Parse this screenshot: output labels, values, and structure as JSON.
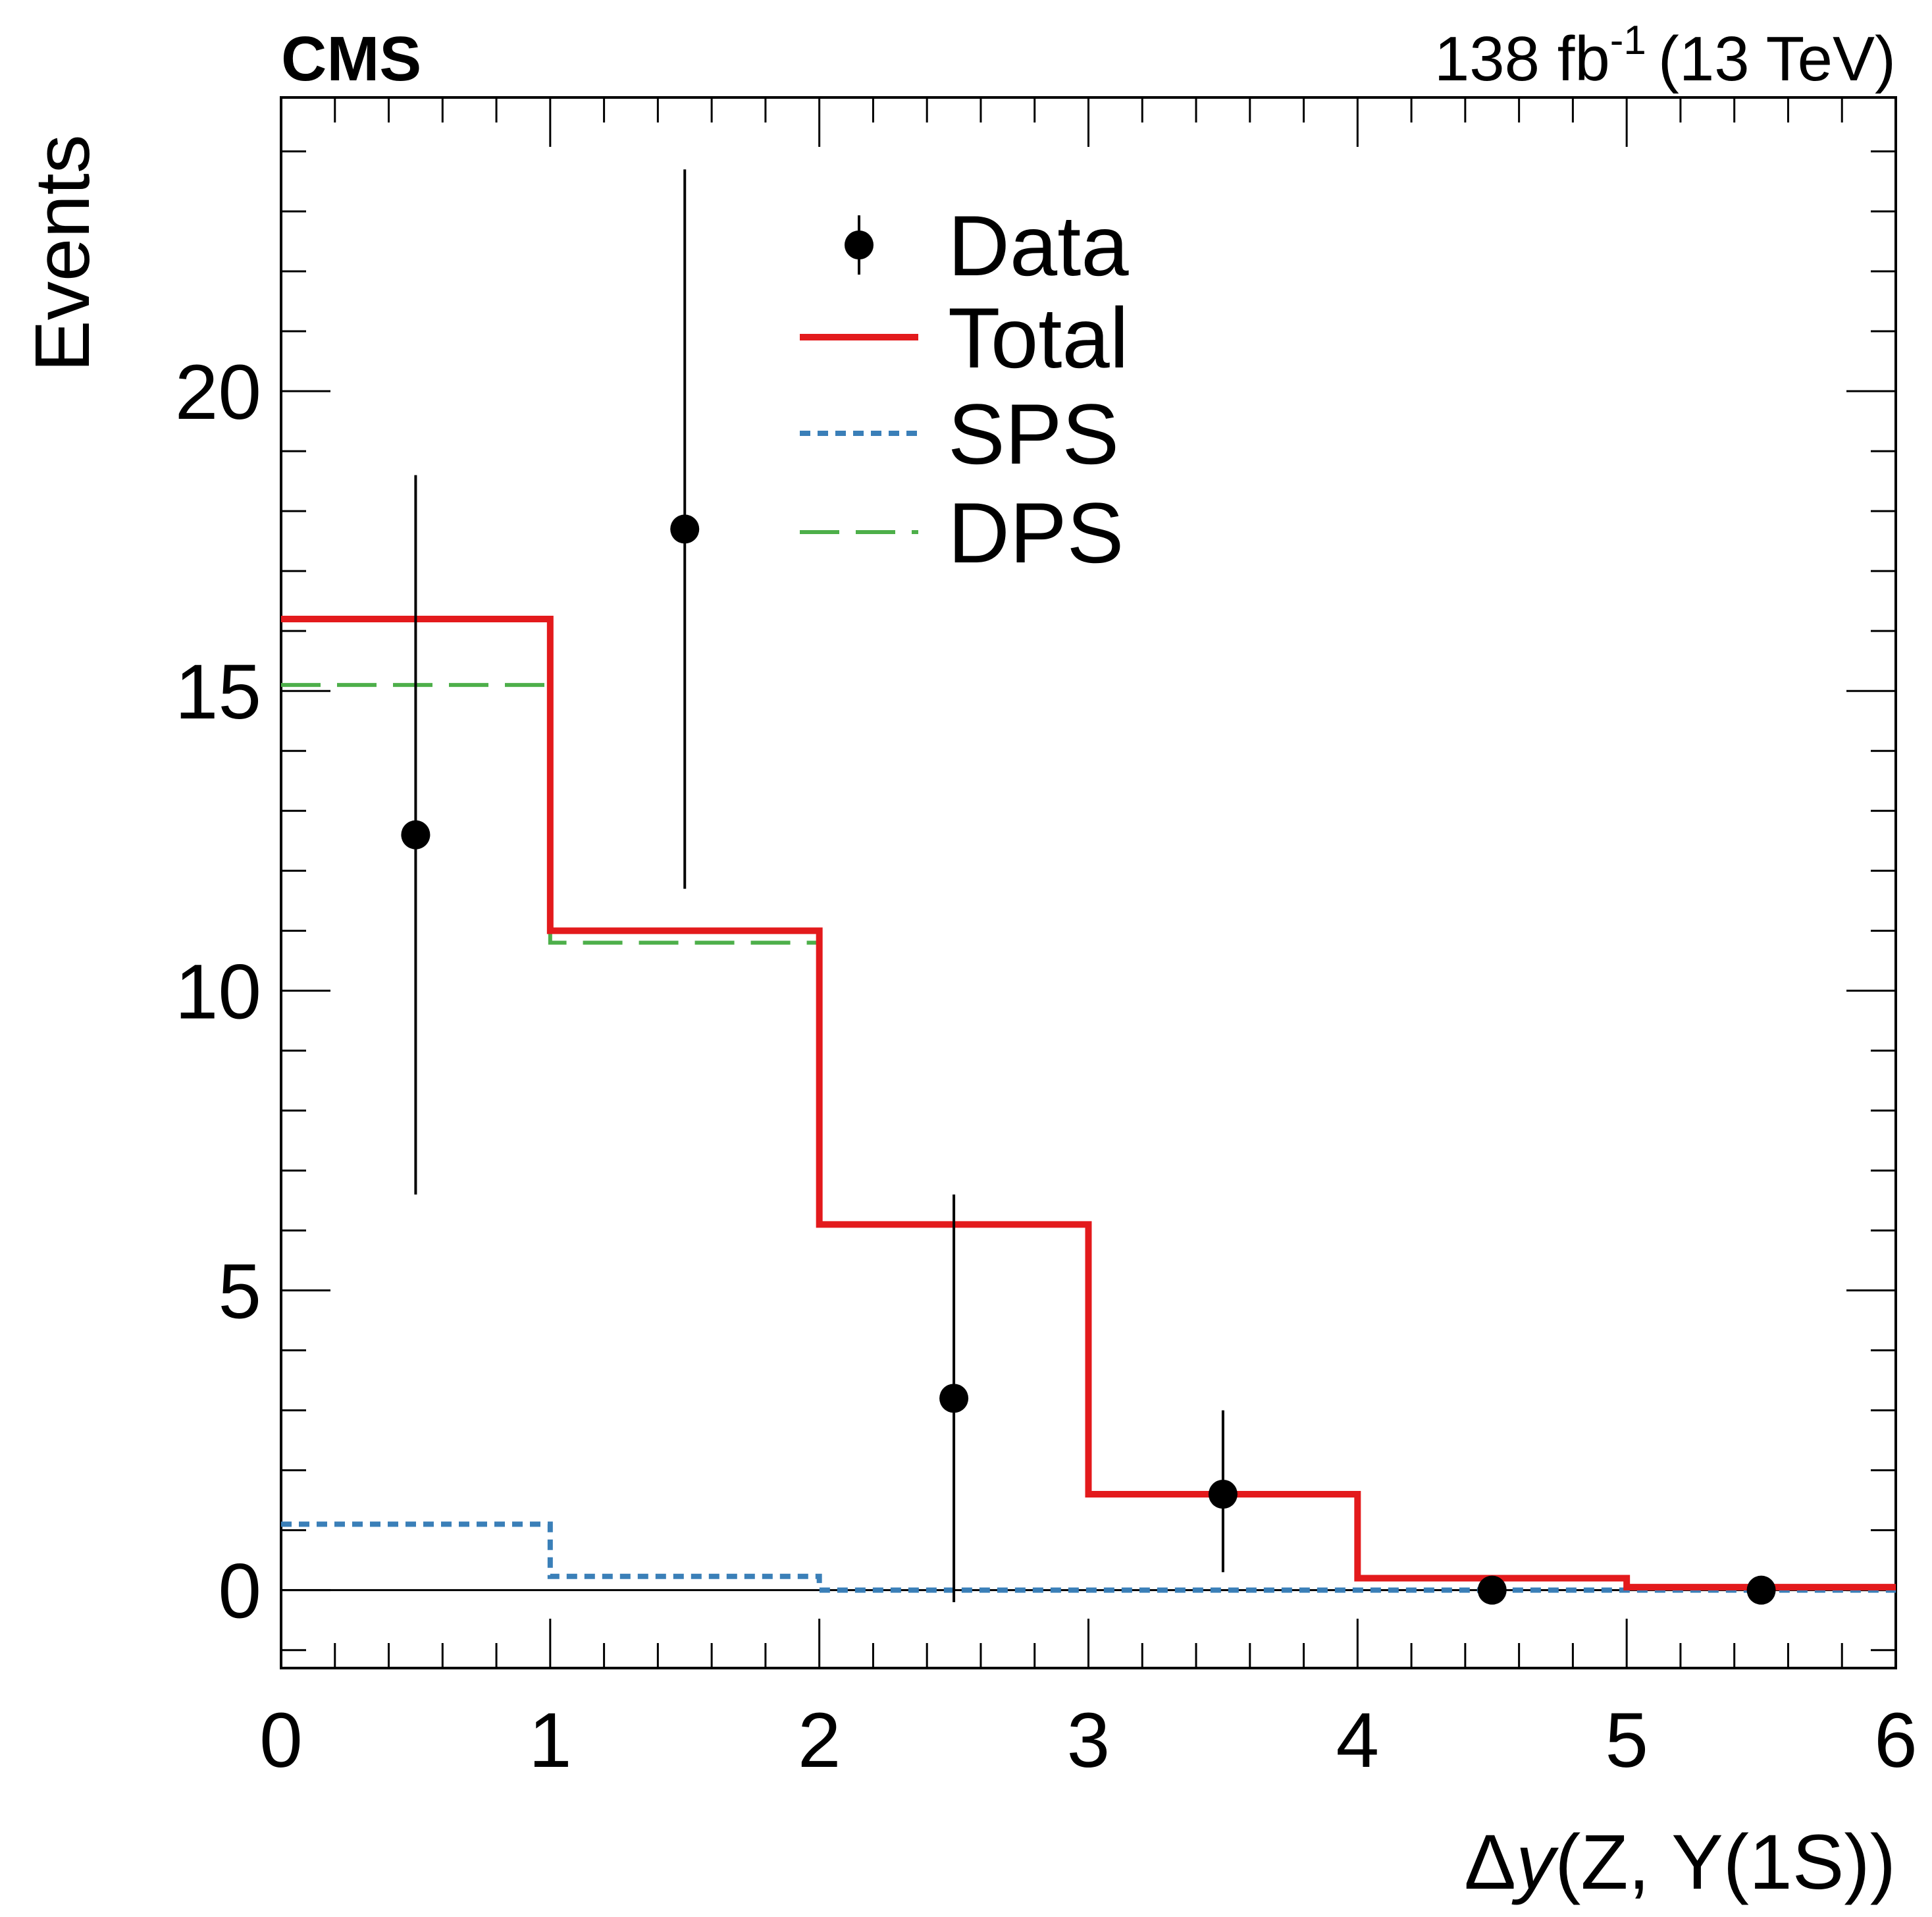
{
  "header": {
    "experiment": "CMS",
    "lumi_value": "138 fb",
    "lumi_exponent": "-1",
    "energy": "(13 TeV)"
  },
  "chart_data": {
    "type": "histogram",
    "title": "",
    "xlabel": "Δy(Z, Υ(1S))",
    "xlabel_parts": {
      "delta": "Δ",
      "var": "y",
      "rest": "(Z, Υ(1S))"
    },
    "ylabel": "Events",
    "xlim": [
      0,
      6
    ],
    "ylim": [
      -1.3,
      24.9
    ],
    "x_ticks": [
      0,
      1,
      2,
      3,
      4,
      5,
      6
    ],
    "x_tick_labels": [
      "0",
      "1",
      "2",
      "3",
      "4",
      "5",
      "6"
    ],
    "y_ticks": [
      0,
      5,
      10,
      15,
      20
    ],
    "y_tick_labels": [
      "0",
      "5",
      "10",
      "15",
      "20"
    ],
    "bin_edges": [
      0,
      1,
      2,
      3,
      4,
      5,
      6
    ],
    "series": [
      {
        "name": "Total",
        "style": "solid",
        "color": "#e31a1c",
        "values": [
          16.2,
          11.0,
          6.1,
          1.6,
          0.2,
          0.05
        ]
      },
      {
        "name": "SPS",
        "style": "dotted",
        "color": "#3a7fb8",
        "values": [
          1.1,
          0.23,
          0.0,
          0.0,
          0.0,
          0.0
        ]
      },
      {
        "name": "DPS",
        "style": "dashed",
        "color": "#4daf4a",
        "values": [
          15.1,
          10.8,
          6.1,
          1.6,
          0.2,
          0.05
        ]
      }
    ],
    "data_points": {
      "name": "Data",
      "color": "#000000",
      "x": [
        0.5,
        1.5,
        2.5,
        3.5,
        4.5,
        5.5
      ],
      "y": [
        12.6,
        17.7,
        3.2,
        1.6,
        0.0,
        0.0
      ],
      "err_low": [
        6.0,
        6.0,
        3.4,
        1.3,
        0.0,
        0.0
      ],
      "err_high": [
        6.0,
        6.0,
        3.4,
        1.4,
        0.0,
        0.0
      ]
    },
    "legend": {
      "position": "top-center",
      "entries": [
        {
          "label": "Data",
          "kind": "marker"
        },
        {
          "label": "Total",
          "kind": "solid"
        },
        {
          "label": "SPS",
          "kind": "dotted"
        },
        {
          "label": "DPS",
          "kind": "dashed"
        }
      ]
    }
  }
}
